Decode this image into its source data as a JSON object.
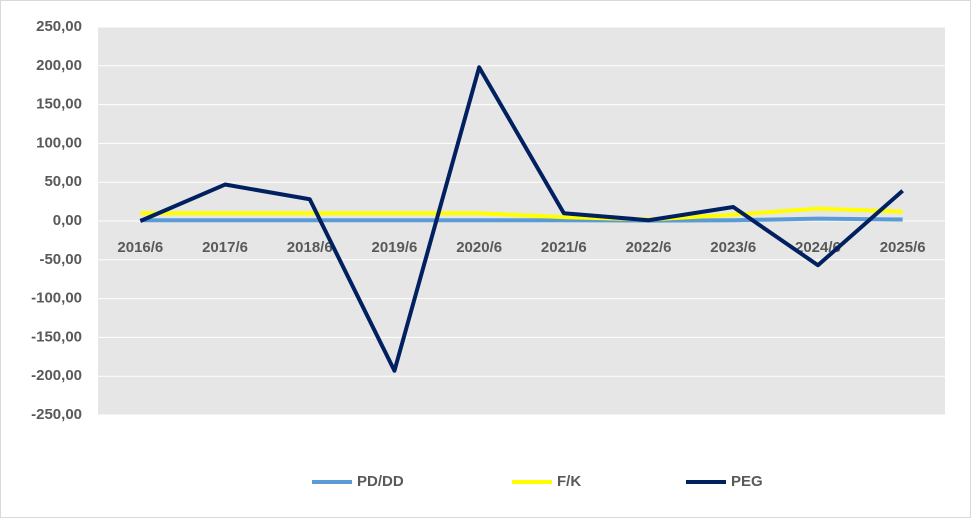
{
  "chart_data": {
    "type": "line",
    "categories": [
      "2016/6",
      "2017/6",
      "2018/6",
      "2019/6",
      "2020/6",
      "2021/6",
      "2022/6",
      "2023/6",
      "2024/6",
      "2025/6"
    ],
    "series": [
      {
        "name": "PD/DD",
        "color": "#5b9bd5",
        "values": [
          1,
          1,
          1,
          1,
          1,
          1,
          0.5,
          1,
          3,
          2
        ]
      },
      {
        "name": "F/K",
        "color": "#ffff00",
        "values": [
          10,
          10,
          10,
          10,
          10,
          5,
          2,
          8,
          16,
          12
        ]
      },
      {
        "name": "PEG",
        "color": "#002060",
        "values": [
          0,
          47,
          28,
          -193,
          198,
          10,
          1,
          18,
          -57,
          39
        ]
      }
    ],
    "ylim": [
      -250,
      250
    ],
    "yticks": [
      {
        "value": 250,
        "label": "250,00"
      },
      {
        "value": 200,
        "label": "200,00"
      },
      {
        "value": 150,
        "label": "150,00"
      },
      {
        "value": 100,
        "label": "100,00"
      },
      {
        "value": 50,
        "label": "50,00"
      },
      {
        "value": 0,
        "label": "0,00"
      },
      {
        "value": -50,
        "label": "-50,00"
      },
      {
        "value": -100,
        "label": "-100,00"
      },
      {
        "value": -150,
        "label": "-150,00"
      },
      {
        "value": -200,
        "label": "-200,00"
      },
      {
        "value": -250,
        "label": "-250,00"
      }
    ],
    "grid": true,
    "legend": "bottom"
  }
}
